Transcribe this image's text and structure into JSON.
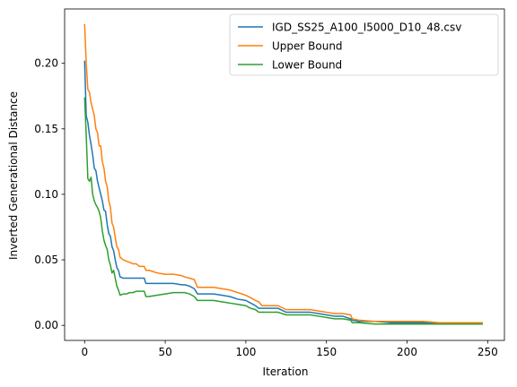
{
  "chart_data": {
    "type": "line",
    "title": "",
    "xlabel": "Iteration",
    "ylabel": "Inverted Generational Distance",
    "xlim": [
      -12.4,
      260.4
    ],
    "ylim": [
      -0.0115,
      0.2415
    ],
    "xticks": [
      0,
      50,
      100,
      150,
      200,
      250
    ],
    "xtick_labels": [
      "0",
      "50",
      "100",
      "150",
      "200",
      "250"
    ],
    "yticks": [
      0.0,
      0.05,
      0.1,
      0.15,
      0.2
    ],
    "ytick_labels": [
      "0.00",
      "0.05",
      "0.10",
      "0.15",
      "0.20"
    ],
    "grid": false,
    "legend_position": "top-right",
    "series": [
      {
        "name": "IGD_SS25_A100_I5000_D10_48.csv",
        "color": "#1f77b4",
        "x": [
          0,
          1,
          2,
          3,
          4,
          5,
          6,
          7,
          8,
          9,
          10,
          11,
          12,
          13,
          14,
          15,
          16,
          17,
          18,
          19,
          20,
          21,
          22,
          24,
          26,
          28,
          30,
          32,
          34,
          37,
          38,
          40,
          45,
          50,
          55,
          60,
          62,
          65,
          68,
          70,
          75,
          80,
          85,
          90,
          95,
          100,
          103,
          106,
          108,
          110,
          115,
          120,
          125,
          130,
          135,
          140,
          145,
          150,
          155,
          160,
          165,
          166,
          170,
          180,
          190,
          200,
          210,
          220,
          230,
          240,
          247
        ],
        "y": [
          0.202,
          0.16,
          0.155,
          0.145,
          0.138,
          0.13,
          0.12,
          0.118,
          0.11,
          0.105,
          0.1,
          0.095,
          0.088,
          0.087,
          0.077,
          0.07,
          0.068,
          0.06,
          0.057,
          0.05,
          0.044,
          0.042,
          0.037,
          0.036,
          0.036,
          0.036,
          0.036,
          0.036,
          0.036,
          0.036,
          0.032,
          0.032,
          0.032,
          0.032,
          0.032,
          0.031,
          0.031,
          0.03,
          0.028,
          0.024,
          0.024,
          0.024,
          0.023,
          0.022,
          0.02,
          0.019,
          0.017,
          0.015,
          0.013,
          0.013,
          0.013,
          0.013,
          0.01,
          0.01,
          0.01,
          0.01,
          0.009,
          0.008,
          0.007,
          0.007,
          0.005,
          0.004,
          0.003,
          0.003,
          0.002,
          0.002,
          0.002,
          0.002,
          0.002,
          0.002,
          0.002
        ]
      },
      {
        "name": "Upper Bound",
        "color": "#ff7f0e",
        "x": [
          0,
          1,
          2,
          3,
          4,
          5,
          6,
          7,
          8,
          9,
          10,
          11,
          12,
          13,
          14,
          15,
          16,
          17,
          18,
          19,
          20,
          21,
          22,
          24,
          26,
          28,
          30,
          32,
          34,
          37,
          38,
          40,
          45,
          50,
          55,
          60,
          62,
          65,
          68,
          70,
          75,
          80,
          85,
          90,
          95,
          100,
          103,
          106,
          108,
          110,
          115,
          120,
          125,
          130,
          135,
          140,
          145,
          150,
          155,
          160,
          165,
          166,
          170,
          180,
          190,
          200,
          210,
          220,
          230,
          240,
          247
        ],
        "y": [
          0.23,
          0.2,
          0.18,
          0.178,
          0.17,
          0.165,
          0.16,
          0.15,
          0.147,
          0.137,
          0.137,
          0.125,
          0.12,
          0.11,
          0.106,
          0.095,
          0.09,
          0.078,
          0.075,
          0.067,
          0.06,
          0.058,
          0.052,
          0.05,
          0.049,
          0.048,
          0.047,
          0.047,
          0.045,
          0.045,
          0.042,
          0.042,
          0.04,
          0.039,
          0.039,
          0.038,
          0.037,
          0.036,
          0.035,
          0.029,
          0.029,
          0.029,
          0.028,
          0.027,
          0.025,
          0.023,
          0.021,
          0.019,
          0.018,
          0.015,
          0.015,
          0.015,
          0.012,
          0.012,
          0.012,
          0.012,
          0.011,
          0.01,
          0.009,
          0.009,
          0.008,
          0.005,
          0.004,
          0.003,
          0.003,
          0.003,
          0.003,
          0.002,
          0.002,
          0.002,
          0.002
        ]
      },
      {
        "name": "Lower Bound",
        "color": "#2ca02c",
        "x": [
          0,
          1,
          2,
          3,
          4,
          5,
          6,
          7,
          8,
          9,
          10,
          11,
          12,
          13,
          14,
          15,
          16,
          17,
          18,
          19,
          20,
          21,
          22,
          24,
          26,
          28,
          30,
          32,
          34,
          37,
          38,
          40,
          45,
          50,
          55,
          60,
          62,
          65,
          68,
          70,
          75,
          80,
          85,
          90,
          95,
          100,
          103,
          106,
          108,
          110,
          115,
          120,
          125,
          130,
          135,
          140,
          145,
          150,
          155,
          160,
          165,
          166,
          170,
          180,
          190,
          200,
          210,
          220,
          230,
          240,
          247
        ],
        "y": [
          0.174,
          0.145,
          0.112,
          0.11,
          0.113,
          0.1,
          0.095,
          0.092,
          0.09,
          0.087,
          0.082,
          0.072,
          0.065,
          0.061,
          0.058,
          0.05,
          0.046,
          0.04,
          0.042,
          0.036,
          0.03,
          0.027,
          0.023,
          0.024,
          0.024,
          0.025,
          0.025,
          0.026,
          0.026,
          0.026,
          0.022,
          0.022,
          0.023,
          0.024,
          0.025,
          0.025,
          0.025,
          0.024,
          0.022,
          0.019,
          0.019,
          0.019,
          0.018,
          0.017,
          0.016,
          0.015,
          0.013,
          0.012,
          0.01,
          0.01,
          0.01,
          0.01,
          0.008,
          0.008,
          0.008,
          0.008,
          0.007,
          0.006,
          0.005,
          0.005,
          0.004,
          0.002,
          0.002,
          0.001,
          0.001,
          0.001,
          0.001,
          0.001,
          0.001,
          0.001,
          0.001
        ]
      }
    ]
  }
}
